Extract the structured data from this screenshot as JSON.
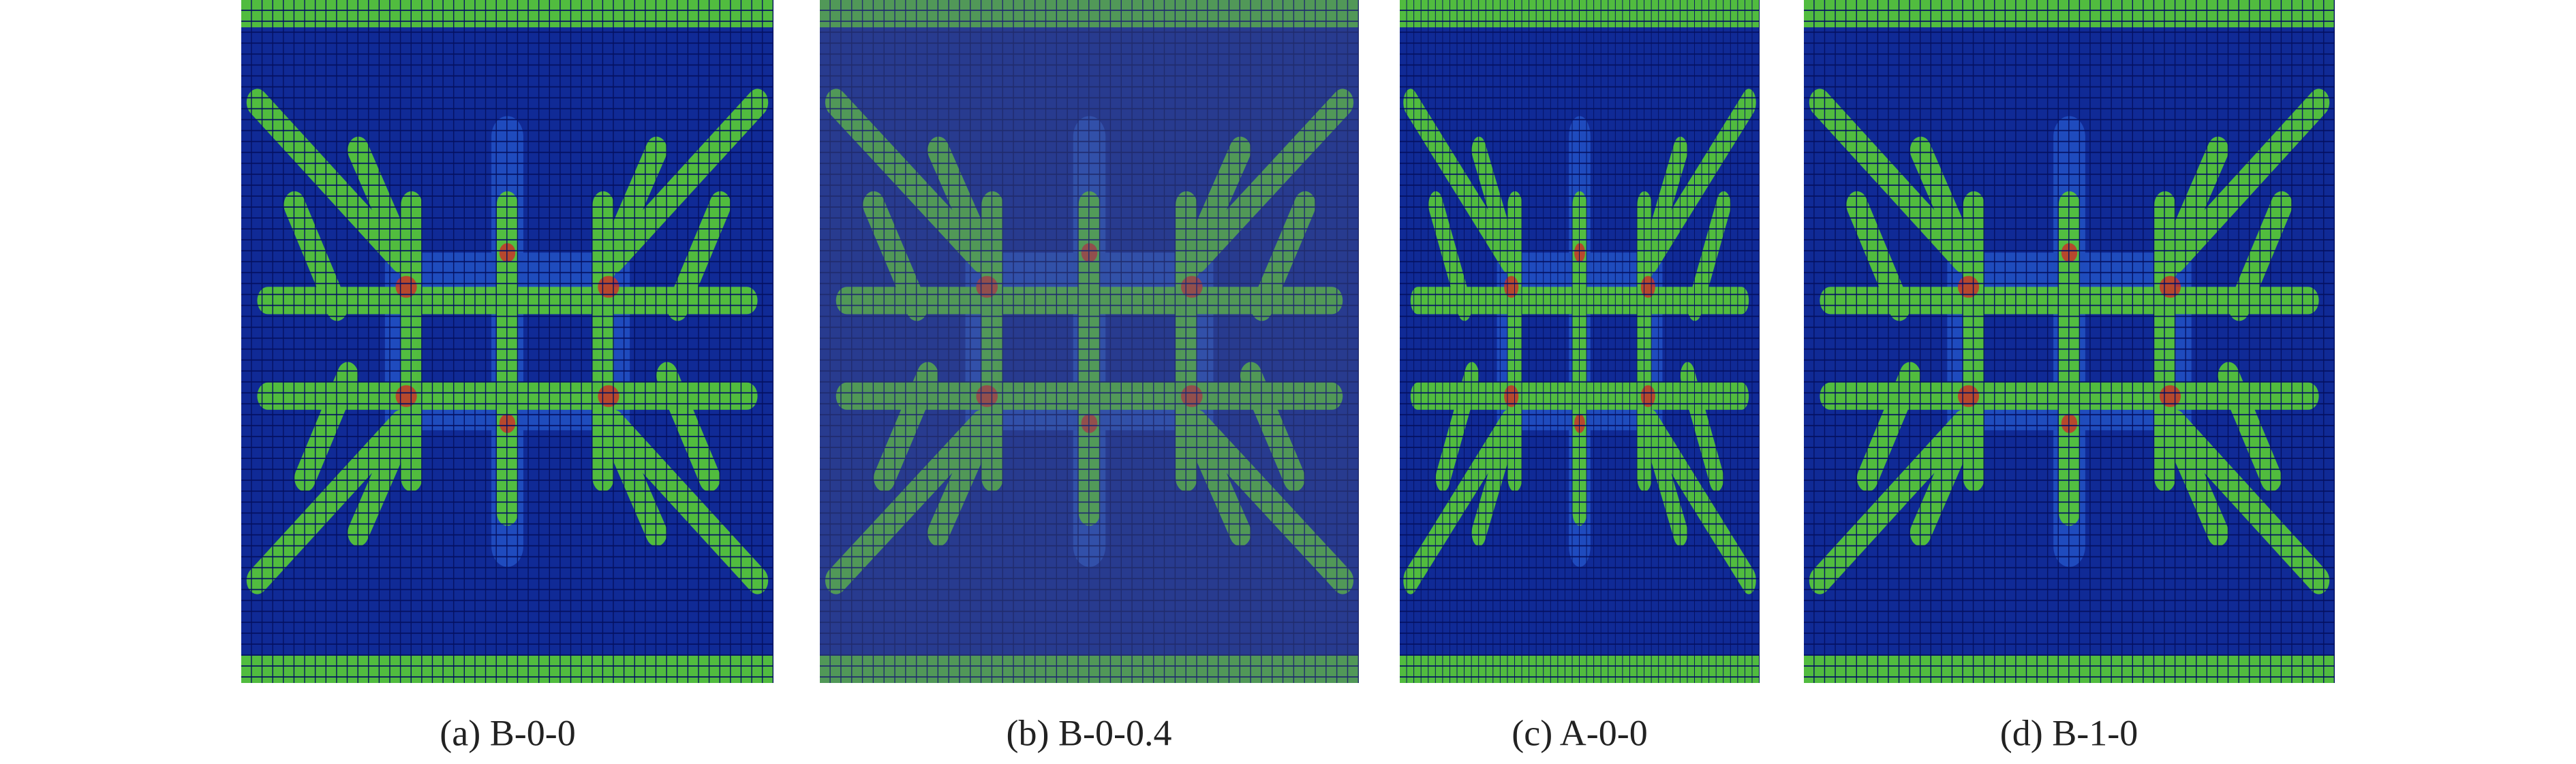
{
  "panels": [
    {
      "caption": "(a) B-0-0"
    },
    {
      "caption": "(b) B-0-0.4"
    },
    {
      "caption": "(c) A-0-0"
    },
    {
      "caption": "(d) B-1-0"
    }
  ]
}
